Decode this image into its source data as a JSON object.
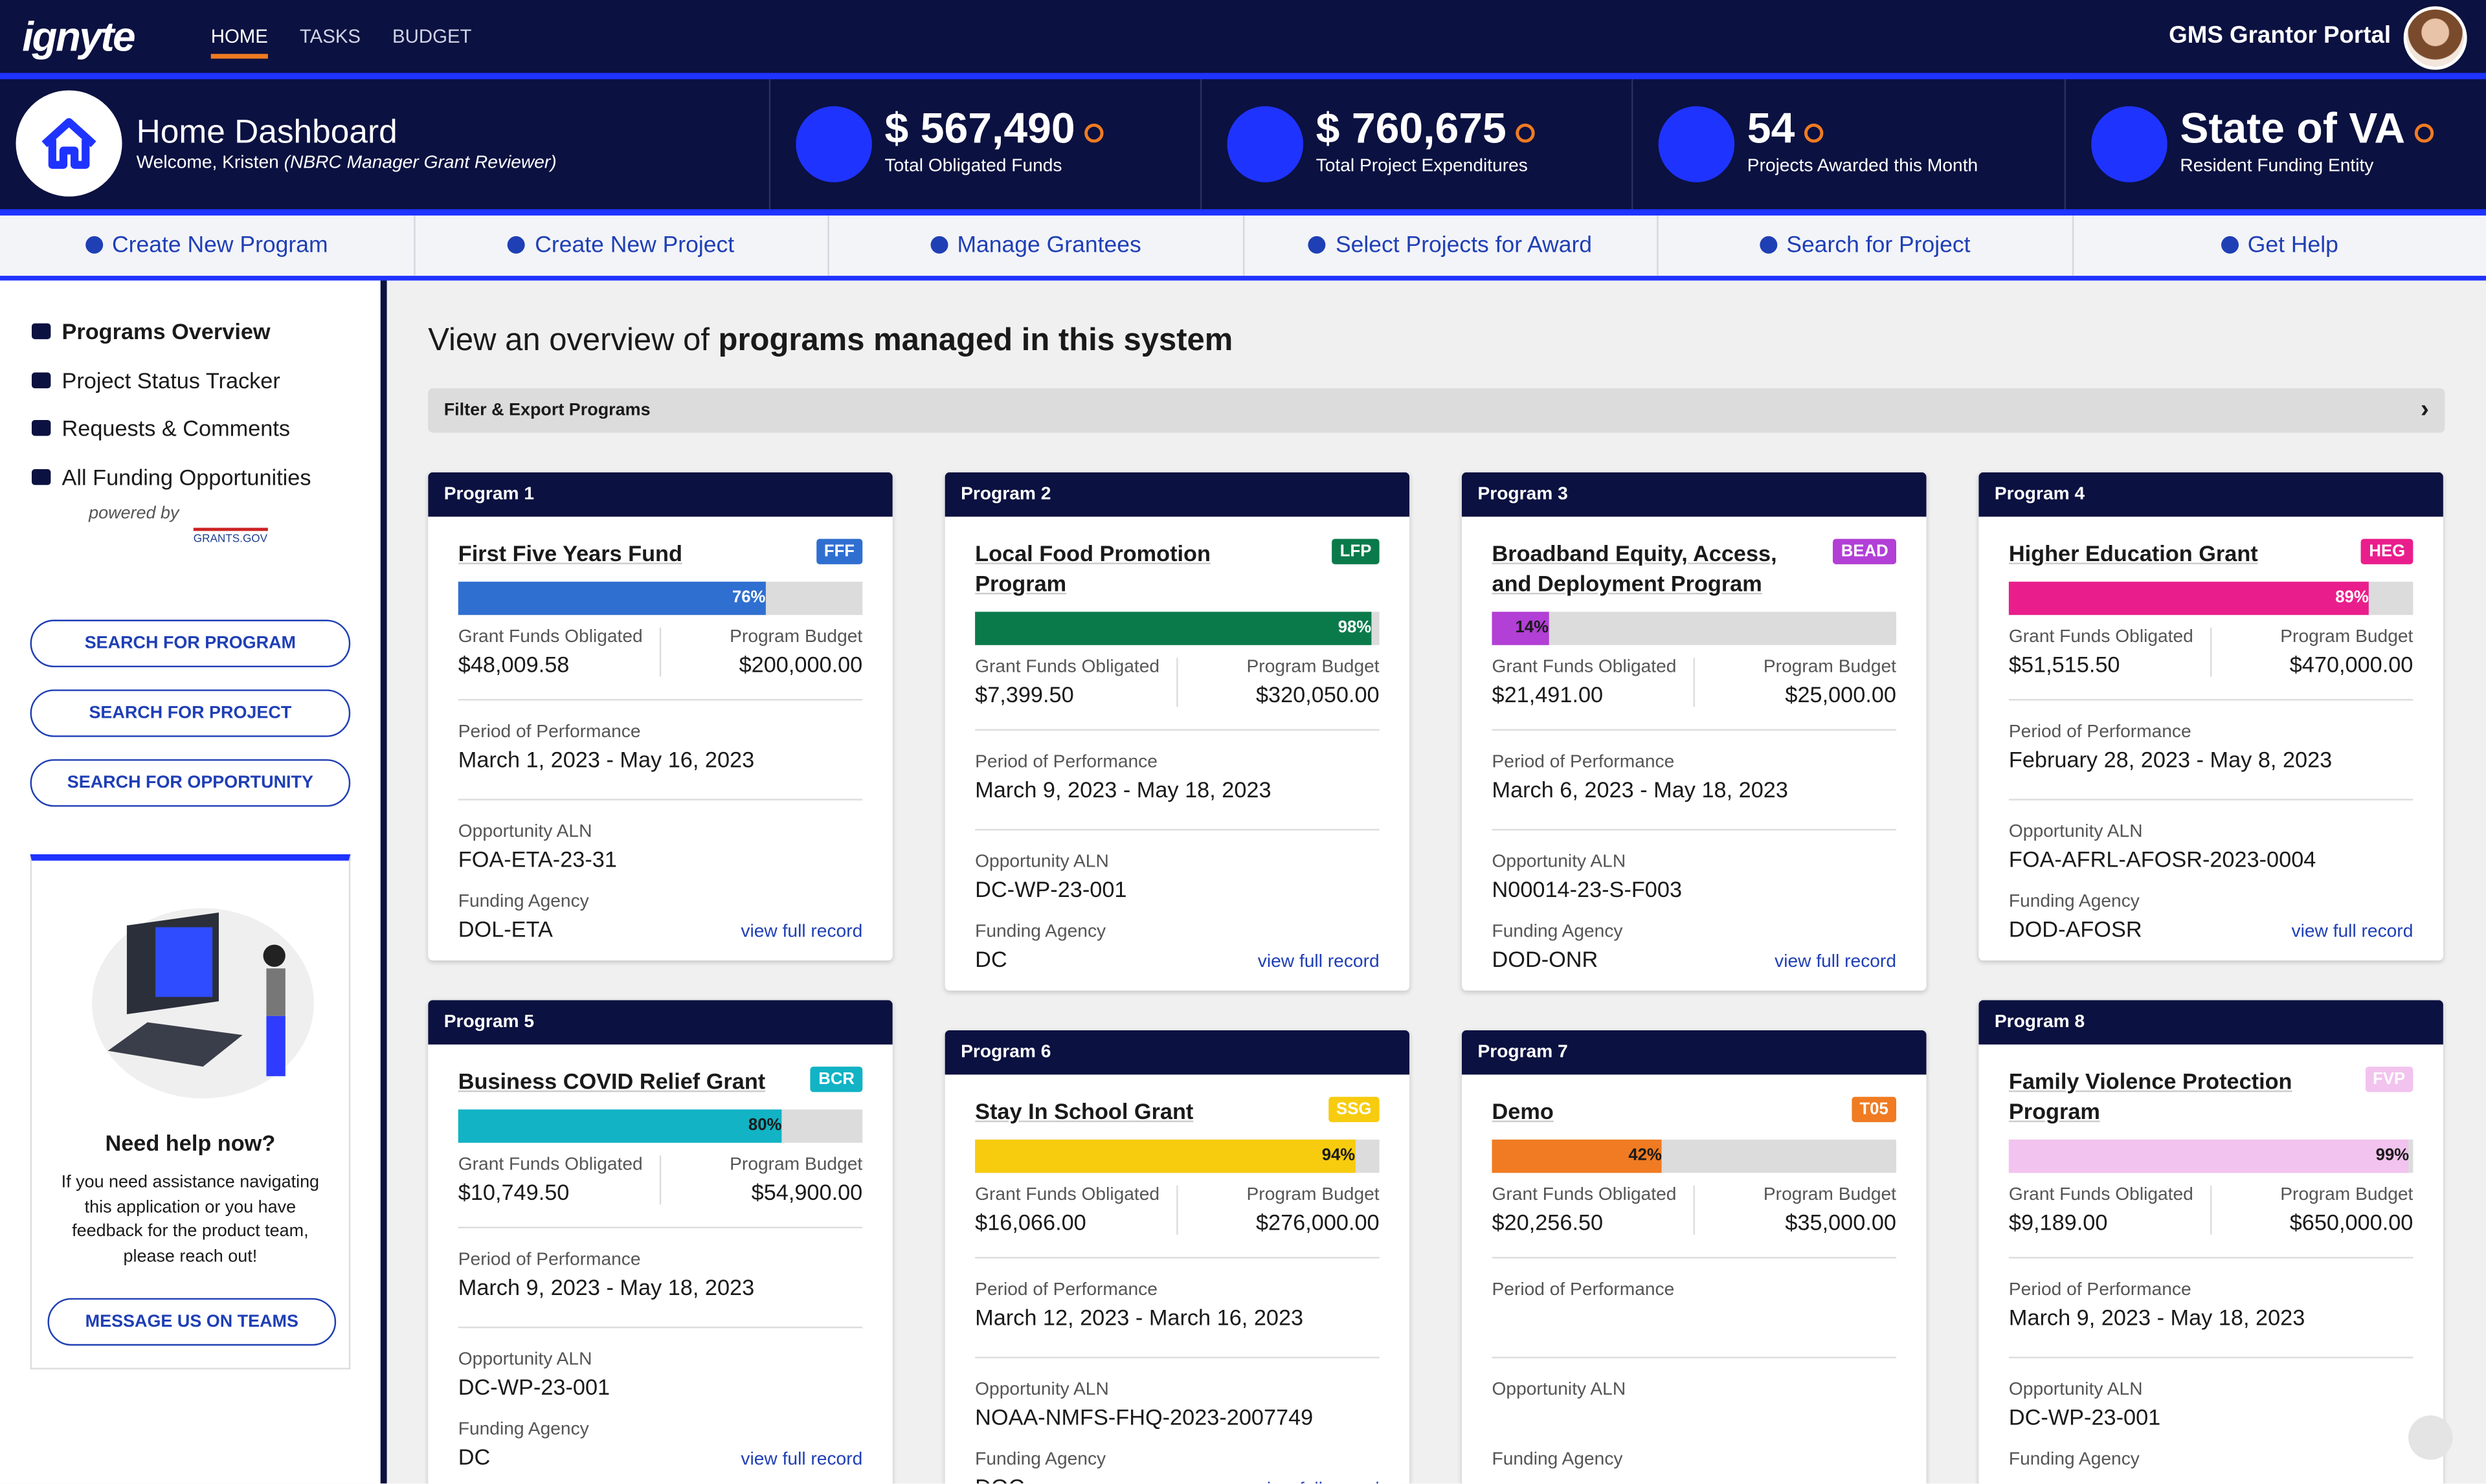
{
  "nav": {
    "logo": "ignyte",
    "links": [
      "HOME",
      "TASKS",
      "BUDGET"
    ],
    "portal": "GMS Grantor Portal"
  },
  "header": {
    "title": "Home Dashboard",
    "welcome": "Welcome, Kristen",
    "role": "(NBRC Manager Grant Reviewer)"
  },
  "stats": [
    {
      "value": "$ 567,490",
      "label": "Total Obligated Funds"
    },
    {
      "value": "$ 760,675",
      "label": "Total Project Expenditures"
    },
    {
      "value": "54",
      "label": "Projects Awarded this Month"
    },
    {
      "value": "State of VA",
      "label": "Resident Funding Entity"
    }
  ],
  "actions": [
    "Create New Program",
    "Create New Project",
    "Manage Grantees",
    "Select Projects for Award",
    "Search for Project",
    "Get Help"
  ],
  "sidebar": {
    "menu": [
      "Programs Overview",
      "Project Status Tracker",
      "Requests & Comments",
      "All Funding Opportunities"
    ],
    "powered_by": "powered by",
    "partner": "GRANTS.GOV",
    "buttons": [
      "SEARCH FOR PROGRAM",
      "SEARCH FOR PROJECT",
      "SEARCH FOR OPPORTUNITY"
    ],
    "help": {
      "title": "Need help now?",
      "text": "If you need assistance navigating this application or you have feedback for the product team, please reach out!",
      "button": "MESSAGE US ON TEAMS"
    }
  },
  "main": {
    "heading_lead": "View an overview of",
    "heading_bold": "programs managed in this system",
    "filter": "Filter & Export Programs"
  },
  "card_labels": {
    "obligated": "Grant Funds Obligated",
    "budget": "Program Budget",
    "period": "Period of Performance",
    "aln": "Opportunity ALN",
    "agency": "Funding Agency",
    "link": "view full record"
  },
  "programs": [
    {
      "header": "Program 1",
      "name": "First Five Years Fund",
      "code": "FFF",
      "color": "#2f6fd0",
      "label_color": "#ffffff",
      "percent": 76,
      "percent_label": "76%",
      "obligated": "$48,009.58",
      "budget": "$200,000.00",
      "period": "March 1, 2023 - May 16, 2023",
      "aln": "FOA-ETA-23-31",
      "agency": "DOL-ETA"
    },
    {
      "header": "Program 2",
      "name": "Local Food Promotion Program",
      "code": "LFP",
      "color": "#0b7a4b",
      "label_color": "#ffffff",
      "percent": 98,
      "percent_label": "98%",
      "obligated": "$7,399.50",
      "budget": "$320,050.00",
      "period": "March 9, 2023 - May 18, 2023",
      "aln": "DC-WP-23-001",
      "agency": "DC"
    },
    {
      "header": "Program 3",
      "name": "Broadband Equity, Access, and Deployment Program",
      "code": "BEAD",
      "color": "#b23fd6",
      "label_color": "#1a1a1a",
      "percent": 14,
      "percent_label": "14%",
      "obligated": "$21,491.00",
      "budget": "$25,000.00",
      "period": "March 6, 2023 - May 18, 2023",
      "aln": "N00014-23-S-F003",
      "agency": "DOD-ONR"
    },
    {
      "header": "Program 4",
      "name": "Higher Education Grant",
      "code": "HEG",
      "color": "#e91e8c",
      "label_color": "#ffffff",
      "percent": 89,
      "percent_label": "89%",
      "obligated": "$51,515.50",
      "budget": "$470,000.00",
      "period": "February 28, 2023 - May 8, 2023",
      "aln": "FOA-AFRL-AFOSR-2023-0004",
      "agency": "DOD-AFOSR"
    },
    {
      "header": "Program 5",
      "name": "Business COVID Relief Grant",
      "code": "BCR",
      "color": "#11b3c4",
      "label_color": "#1a1a1a",
      "percent": 80,
      "percent_label": "80%",
      "obligated": "$10,749.50",
      "budget": "$54,900.00",
      "period": "March 9, 2023 - May 18, 2023",
      "aln": "DC-WP-23-001",
      "agency": "DC"
    },
    {
      "header": "Program 6",
      "name": "Stay In School Grant",
      "code": "SSG",
      "color": "#f7cc0f",
      "label_color": "#1a1a1a",
      "percent": 94,
      "percent_label": "94%",
      "obligated": "$16,066.00",
      "budget": "$276,000.00",
      "period": "March 12, 2023 - March 16, 2023",
      "aln": "NOAA-NMFS-FHQ-2023-2007749",
      "agency": "DOC"
    },
    {
      "header": "Program 7",
      "name": "Demo",
      "code": "T05",
      "color": "#f07b22",
      "label_color": "#1a1a1a",
      "percent": 42,
      "percent_label": "42%",
      "obligated": "$20,256.50",
      "budget": "$35,000.00"
    },
    {
      "header": "Program 8",
      "name": "Family Violence Protection Program",
      "code": "FVP",
      "color": "#f2c3ee",
      "label_color": "#1a1a1a",
      "percent": 99,
      "percent_label": "99%",
      "obligated": "$9,189.00",
      "budget": "$650,000.00",
      "period": "March 9, 2023 - May 18, 2023",
      "aln": "DC-WP-23-001"
    }
  ]
}
